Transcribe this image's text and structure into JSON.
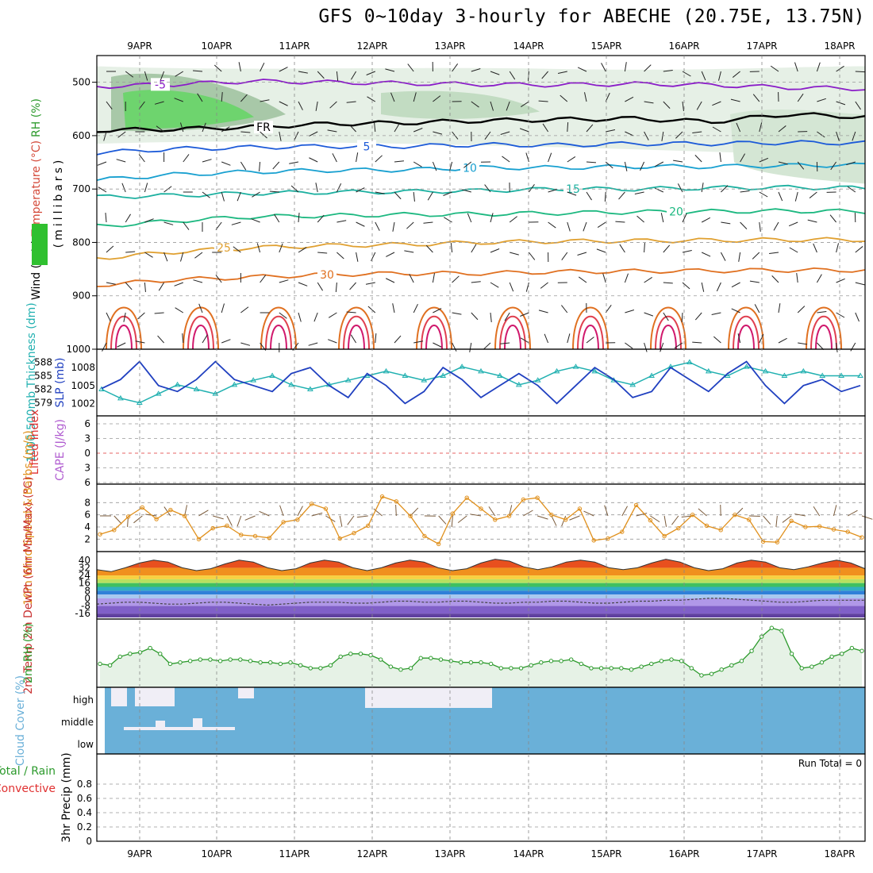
{
  "title": "GFS 0~10day 3-hourly for ABECHE (20.75E, 13.75N)",
  "colors": {
    "wind": "#000000",
    "temperature": "#d44a3a",
    "rh": "#2c9a2c",
    "lifted_index": "#e03030",
    "cape": "#b05cd0",
    "thickness": "#20b0b0",
    "slp": "#2040c0",
    "wind10": "#e0901c",
    "cloud": "#6ab0d8",
    "rain_total": "#2c9a2c",
    "rain_conv": "#e03030"
  },
  "chart_data": [
    {
      "type": "line",
      "panel": "upper-air",
      "ylabel_parts": [
        "Wind (m/s)",
        "Temperature (°C)",
        "RH (%)"
      ],
      "ylabel_unit": "(millibars)",
      "x_dates": [
        "9APR",
        "10APR",
        "11APR",
        "12APR",
        "13APR",
        "14APR",
        "15APR",
        "16APR",
        "17APR",
        "18APR"
      ],
      "y_ticks": [
        500,
        600,
        700,
        800,
        900,
        1000
      ],
      "ylim": [
        1000,
        450
      ],
      "isotherms": [
        {
          "label": "-5",
          "pressure": [
            508,
            504,
            498,
            500,
            502,
            504,
            505,
            503,
            505,
            510,
            512
          ]
        },
        {
          "label": "FR",
          "pressure": [
            590,
            588,
            584,
            578,
            576,
            572,
            570,
            568,
            574,
            560,
            565
          ]
        },
        {
          "label": "5",
          "pressure": [
            632,
            625,
            622,
            620,
            620,
            617,
            618,
            615,
            615,
            613,
            614
          ]
        },
        {
          "label": "10",
          "pressure": [
            683,
            673,
            668,
            665,
            664,
            660,
            660,
            658,
            658,
            656,
            655
          ]
        },
        {
          "label": "15",
          "pressure": [
            715,
            712,
            708,
            706,
            705,
            703,
            700,
            700,
            698,
            697,
            698
          ]
        },
        {
          "label": "20",
          "pressure": [
            770,
            760,
            752,
            750,
            748,
            747,
            745,
            743,
            742,
            741,
            742
          ]
        },
        {
          "label": "25",
          "pressure": [
            830,
            818,
            810,
            806,
            804,
            800,
            798,
            797,
            796,
            795,
            795
          ]
        },
        {
          "label": "30",
          "pressure": [
            880,
            870,
            865,
            860,
            858,
            858,
            855,
            854,
            853,
            852,
            852
          ]
        }
      ],
      "contour_labels": [
        "-5",
        "FR",
        "5",
        "10",
        "15",
        "20",
        "25",
        "30",
        "30",
        "30",
        "10"
      ]
    },
    {
      "type": "line",
      "panel": "slp-thickness",
      "ylabel_left": "1000-500mb Thickness (dm)",
      "ylabel_right": "SLP (mb)",
      "left_ticks": [
        579,
        582,
        585,
        588
      ],
      "right_ticks": [
        1002,
        1005,
        1008
      ],
      "series": [
        {
          "name": "SLP",
          "values": [
            1004.5,
            1006,
            1009,
            1005,
            1004,
            1006,
            1009,
            1006,
            1005,
            1004,
            1007,
            1008,
            1005,
            1003,
            1007,
            1005,
            1002,
            1004,
            1008,
            1006,
            1003,
            1005,
            1007,
            1005,
            1002,
            1005,
            1008,
            1006,
            1003,
            1004,
            1008,
            1006,
            1004,
            1007,
            1009,
            1005,
            1002,
            1005,
            1006,
            1004,
            1005
          ]
        },
        {
          "name": "Thickness",
          "values": [
            582,
            580,
            579,
            581,
            583,
            582,
            581,
            583,
            584,
            585,
            583,
            582,
            583,
            584,
            585,
            586,
            585,
            584,
            585,
            587,
            586,
            585,
            583,
            584,
            586,
            587,
            586,
            584,
            583,
            585,
            587,
            588,
            586,
            585,
            587,
            586,
            585,
            586,
            585,
            585,
            585
          ]
        }
      ]
    },
    {
      "type": "line",
      "panel": "lifted-cape",
      "ylabel_left": "Lifted Index",
      "ylabel_right": "CAPE (J/kg)",
      "ticks": [
        -6,
        -3,
        0,
        3,
        6
      ]
    },
    {
      "type": "line",
      "panel": "wind10",
      "ylabel": "10m Wind Speed & Barbs (m/s)",
      "ticks": [
        2,
        4,
        6,
        8
      ],
      "series": [
        {
          "name": "10m Wind Speed",
          "values": [
            2.8,
            3.5,
            5.7,
            7.2,
            5.3,
            6.8,
            5.8,
            2.0,
            3.8,
            4.2,
            2.7,
            2.5,
            2.2,
            4.8,
            5.2,
            7.8,
            7.0,
            2.1,
            3.0,
            4.2,
            9.0,
            8.2,
            5.8,
            2.5,
            1.2,
            6.2,
            8.8,
            7.0,
            5.2,
            5.8,
            8.5,
            8.8,
            6.0,
            5.2,
            7.0,
            1.8,
            2.1,
            3.2,
            7.6,
            5.1,
            2.5,
            3.8,
            6.0,
            4.2,
            3.5,
            6.0,
            5.2,
            1.6,
            1.5,
            5.0,
            4.0,
            4.1,
            3.6,
            3.2,
            2.3
          ]
        }
      ]
    },
    {
      "type": "area",
      "panel": "temp-dewpt",
      "ylabel": "2m Temp 2m DewPt (6hr Min/Max) (°C)",
      "ticks": [
        40,
        32,
        24,
        16,
        8,
        0,
        -8,
        -16
      ],
      "series": [
        {
          "name": "2m Temp",
          "values": [
            30,
            28,
            32,
            37,
            40,
            38,
            32,
            29,
            31,
            36,
            40,
            38,
            32,
            29,
            31,
            37,
            40,
            38,
            32,
            29,
            32,
            37,
            40,
            38,
            32,
            29,
            31,
            37,
            41,
            39,
            33,
            30,
            33,
            38,
            40,
            38,
            32,
            30,
            32,
            37,
            41,
            38,
            32,
            29,
            31,
            37,
            40,
            38,
            32,
            30,
            33,
            37,
            40,
            37,
            31
          ]
        },
        {
          "name": "2m DewPt",
          "values": [
            -6,
            -5,
            -4,
            -4,
            -5,
            -6,
            -6,
            -5,
            -4,
            -4,
            -5,
            -6,
            -7,
            -6,
            -5,
            -4,
            -4,
            -4,
            -5,
            -5,
            -4,
            -3,
            -3,
            -4,
            -4,
            -3,
            -3,
            -4,
            -5,
            -5,
            -4,
            -4,
            -3,
            -3,
            -4,
            -5,
            -5,
            -4,
            -3,
            -3,
            -2,
            -2,
            -1,
            0,
            0,
            -1,
            -2,
            -3,
            -4,
            -4,
            -3,
            -2,
            -2,
            -2,
            -2
          ]
        }
      ]
    },
    {
      "type": "area",
      "panel": "rh2m",
      "ylabel": "2m RH (%)",
      "series": [
        {
          "name": "2m RH",
          "values": [
            33,
            32,
            38,
            40,
            41,
            44,
            40,
            33,
            34,
            35,
            36,
            36,
            35,
            36,
            36,
            35,
            34,
            34,
            33,
            34,
            32,
            30,
            30,
            32,
            38,
            40,
            40,
            39,
            36,
            31,
            29,
            30,
            37,
            37,
            36,
            35,
            34,
            34,
            34,
            33,
            30,
            30,
            30,
            32,
            34,
            35,
            35,
            36,
            33,
            30,
            30,
            30,
            30,
            29,
            31,
            33,
            35,
            36,
            35,
            30,
            25,
            26,
            29,
            32,
            35,
            42,
            52,
            58,
            56,
            40,
            30,
            31,
            34,
            38,
            40,
            44,
            42
          ]
        }
      ]
    },
    {
      "type": "bar",
      "panel": "cloud",
      "ylabel": "Cloud Cover (%)",
      "levels": [
        "high",
        "middle",
        "low"
      ]
    },
    {
      "type": "bar",
      "panel": "precip",
      "ylabel_left_1": "Total / Rain",
      "ylabel_left_2": "Convective",
      "ylabel": "3hr Precip (mm)",
      "ticks": [
        "0",
        "0.2",
        "0.4",
        "0.6",
        "0.8"
      ],
      "run_total": "Run Total = 0"
    }
  ]
}
